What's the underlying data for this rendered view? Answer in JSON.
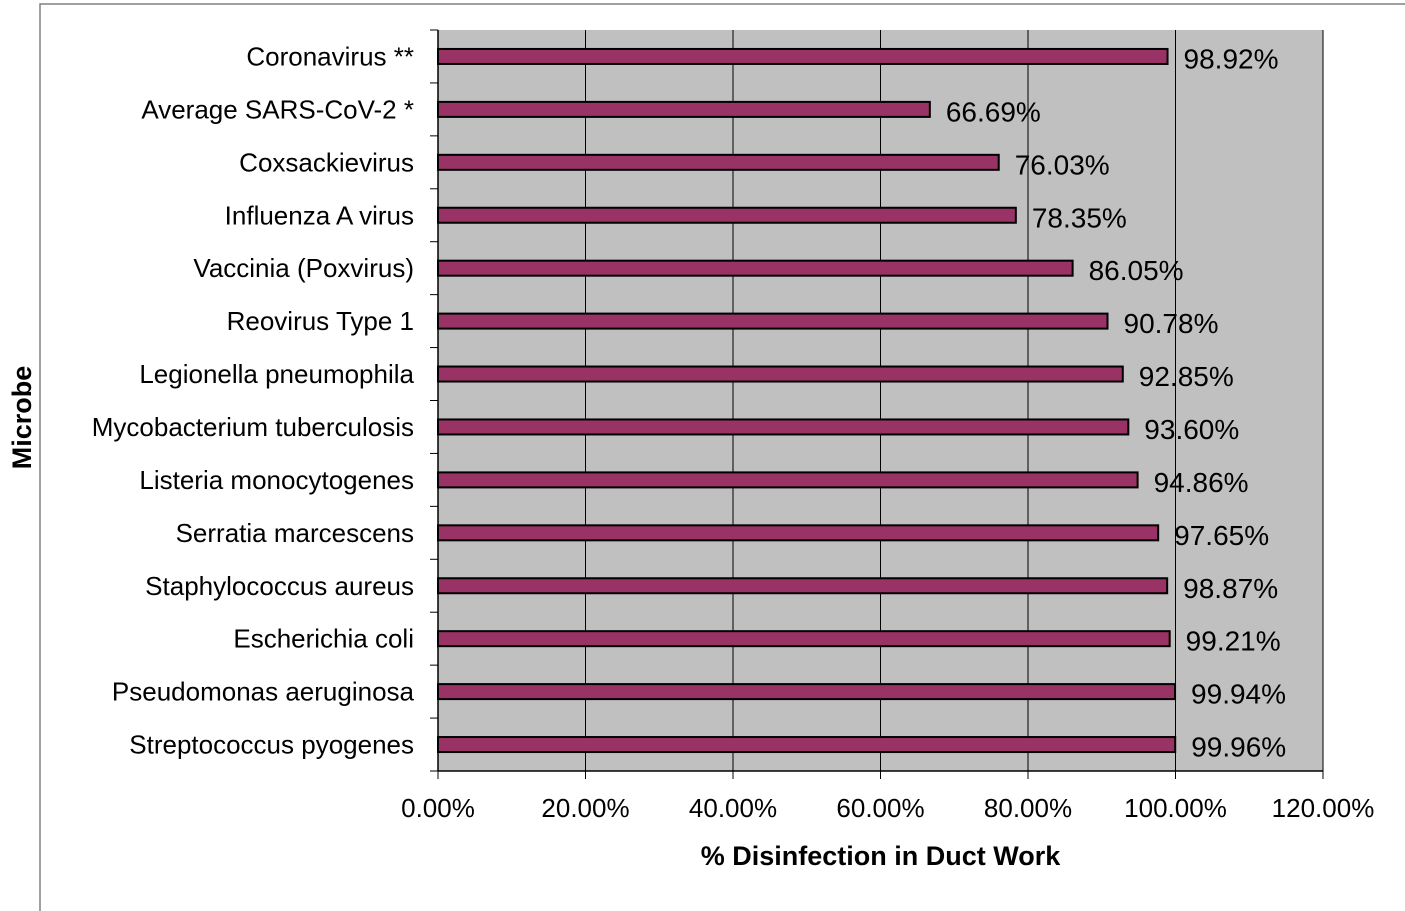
{
  "chart_data": {
    "type": "bar",
    "orientation": "horizontal",
    "categories": [
      "Coronavirus **",
      "Average SARS-CoV-2 *",
      "Coxsackievirus",
      "Influenza A virus",
      "Vaccinia (Poxvirus)",
      "Reovirus Type 1",
      "Legionella pneumophila",
      "Mycobacterium tuberculosis",
      "Listeria monocytogenes",
      "Serratia marcescens",
      "Staphylococcus aureus",
      "Escherichia coli",
      "Pseudomonas aeruginosa",
      "Streptococcus pyogenes"
    ],
    "values": [
      98.92,
      66.69,
      76.03,
      78.35,
      86.05,
      90.78,
      92.85,
      93.6,
      94.86,
      97.65,
      98.87,
      99.21,
      99.94,
      99.96
    ],
    "data_labels": [
      "98.92%",
      "66.69%",
      "76.03%",
      "78.35%",
      "86.05%",
      "90.78%",
      "92.85%",
      "93.60%",
      "94.86%",
      "97.65%",
      "98.87%",
      "99.21%",
      "99.94%",
      "99.96%"
    ],
    "xlim": [
      0,
      120
    ],
    "x_ticks": [
      0,
      20,
      40,
      60,
      80,
      100,
      120
    ],
    "x_tick_labels": [
      "0.00%",
      "20.00%",
      "40.00%",
      "60.00%",
      "80.00%",
      "100.00%",
      "120.00%"
    ],
    "xlabel": "% Disinfection in Duct Work",
    "ylabel": "Microbe",
    "title": "",
    "grid": "vertical",
    "legend": "none",
    "colors": {
      "bar": "#993366",
      "plot_background": "#c0c0c0",
      "gridline": "#000000"
    }
  }
}
